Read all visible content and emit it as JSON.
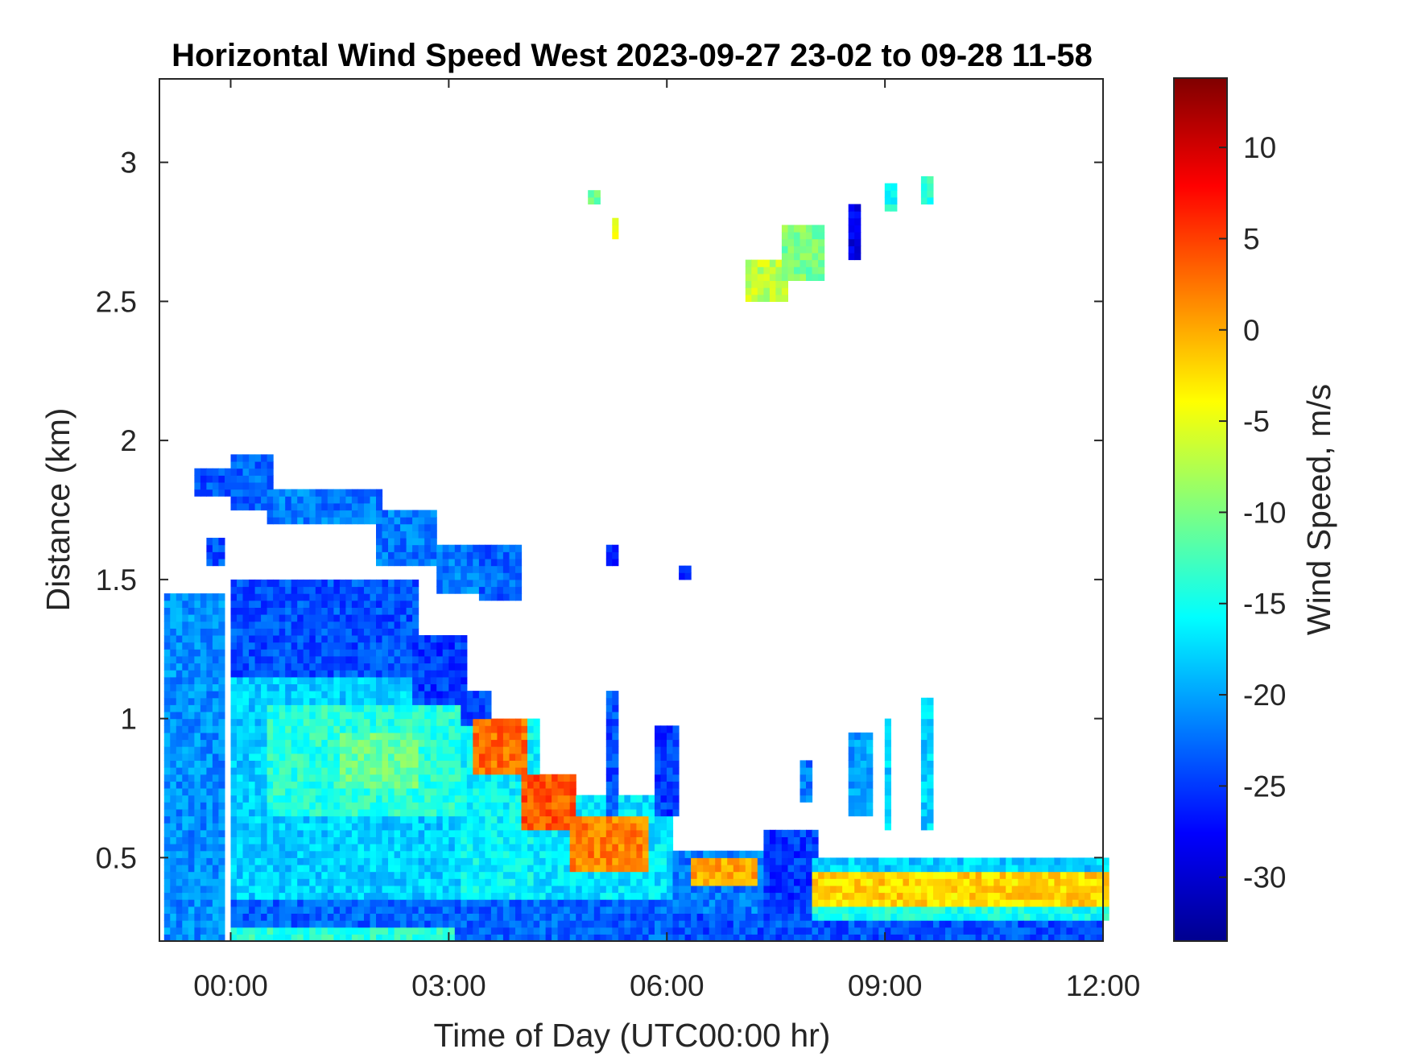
{
  "chart_data": {
    "type": "heatmap",
    "title": "Horizontal Wind Speed West 2023-09-27 23-02 to 09-28 11-58",
    "xlabel": "Time of Day (UTC00:00 hr)",
    "ylabel": "Distance (km)",
    "colorbar_label": "Wind Speed, m/s",
    "colormap": "jet",
    "xlim_hours": [
      -0.98,
      12.0
    ],
    "ylim": [
      0.2,
      3.3
    ],
    "clim": [
      -33.5,
      13.8
    ],
    "x_ticks": [
      {
        "value": 0,
        "label": "00:00"
      },
      {
        "value": 3,
        "label": "03:00"
      },
      {
        "value": 6,
        "label": "06:00"
      },
      {
        "value": 9,
        "label": "09:00"
      },
      {
        "value": 12,
        "label": "12:00"
      }
    ],
    "y_ticks": [
      {
        "value": 0.5,
        "label": "0.5"
      },
      {
        "value": 1,
        "label": "1"
      },
      {
        "value": 1.5,
        "label": "1.5"
      },
      {
        "value": 2,
        "label": "2"
      },
      {
        "value": 2.5,
        "label": "2.5"
      },
      {
        "value": 3,
        "label": "3"
      }
    ],
    "colorbar_ticks": [
      {
        "value": 10,
        "label": "10"
      },
      {
        "value": 5,
        "label": "5"
      },
      {
        "value": 0,
        "label": "0"
      },
      {
        "value": -5,
        "label": "-5"
      },
      {
        "value": -10,
        "label": "-10"
      },
      {
        "value": -15,
        "label": "-15"
      },
      {
        "value": -20,
        "label": "-20"
      },
      {
        "value": -25,
        "label": "-25"
      },
      {
        "value": -30,
        "label": "-30"
      }
    ],
    "cell_size": {
      "hours": 0.0833,
      "km": 0.025
    },
    "patches_note": "[t_start_h, t_end_h, z_bottom_km, z_top_km, wind_speed_mps]",
    "patches": [
      [
        -0.95,
        -0.12,
        0.2,
        1.43,
        -21
      ],
      [
        -0.98,
        -0.95,
        0.85,
        1.35,
        -6
      ],
      [
        0.0,
        3.2,
        0.2,
        1.15,
        -18
      ],
      [
        0.0,
        2.5,
        1.15,
        1.48,
        -24
      ],
      [
        2.5,
        3.2,
        1.05,
        1.3,
        -25
      ],
      [
        0.5,
        3.2,
        0.65,
        1.05,
        -14
      ],
      [
        1.5,
        2.5,
        0.75,
        0.95,
        -11
      ],
      [
        3.2,
        4.2,
        0.2,
        0.98,
        -16
      ],
      [
        3.2,
        3.6,
        0.98,
        1.1,
        -24
      ],
      [
        4.2,
        6.1,
        0.2,
        0.72,
        -17
      ],
      [
        0.0,
        6.2,
        0.2,
        0.35,
        -23
      ],
      [
        0.0,
        3.0,
        0.2,
        0.23,
        -14
      ],
      [
        3.3,
        4.0,
        0.8,
        1.0,
        3
      ],
      [
        4.0,
        4.7,
        0.6,
        0.8,
        4
      ],
      [
        4.7,
        5.7,
        0.45,
        0.65,
        2
      ],
      [
        5.2,
        5.3,
        0.65,
        1.1,
        -24
      ],
      [
        5.85,
        6.1,
        0.65,
        0.97,
        -25
      ],
      [
        6.1,
        12.0,
        0.2,
        0.3,
        -24
      ],
      [
        6.1,
        7.3,
        0.3,
        0.52,
        -22
      ],
      [
        6.3,
        7.2,
        0.4,
        0.5,
        0
      ],
      [
        7.3,
        8.0,
        0.3,
        0.6,
        -25
      ],
      [
        8.0,
        12.0,
        0.28,
        0.33,
        -15
      ],
      [
        8.0,
        12.0,
        0.33,
        0.45,
        -2
      ],
      [
        8.0,
        12.0,
        0.45,
        0.48,
        -18
      ],
      [
        -0.5,
        -0.05,
        1.8,
        1.9,
        -24
      ],
      [
        0.0,
        0.5,
        1.75,
        1.95,
        -23
      ],
      [
        0.5,
        2.0,
        1.7,
        1.82,
        -22
      ],
      [
        2.0,
        2.8,
        1.55,
        1.75,
        -22
      ],
      [
        2.8,
        3.3,
        1.45,
        1.62,
        -22
      ],
      [
        -0.3,
        -0.1,
        1.55,
        1.65,
        -24
      ],
      [
        3.4,
        3.9,
        1.43,
        1.62,
        -23
      ],
      [
        5.2,
        5.3,
        1.55,
        1.62,
        -25
      ],
      [
        6.2,
        6.3,
        1.5,
        1.55,
        -26
      ],
      [
        7.1,
        7.6,
        2.5,
        2.65,
        -7
      ],
      [
        7.6,
        8.1,
        2.58,
        2.78,
        -10
      ],
      [
        8.5,
        8.6,
        2.65,
        2.85,
        -28
      ],
      [
        9.0,
        9.1,
        2.82,
        2.9,
        -15
      ],
      [
        9.5,
        9.6,
        2.85,
        2.95,
        -14
      ],
      [
        4.95,
        5.1,
        2.85,
        2.88,
        -12
      ],
      [
        5.25,
        5.3,
        2.73,
        2.8,
        -4
      ],
      [
        8.5,
        8.75,
        0.65,
        0.95,
        -20
      ],
      [
        9.0,
        9.05,
        0.6,
        1.0,
        -18
      ],
      [
        9.5,
        9.6,
        0.6,
        1.07,
        -18
      ],
      [
        7.8,
        7.9,
        0.7,
        0.85,
        -22
      ]
    ]
  },
  "colors": {
    "axis": "#262626",
    "background": "#ffffff"
  }
}
